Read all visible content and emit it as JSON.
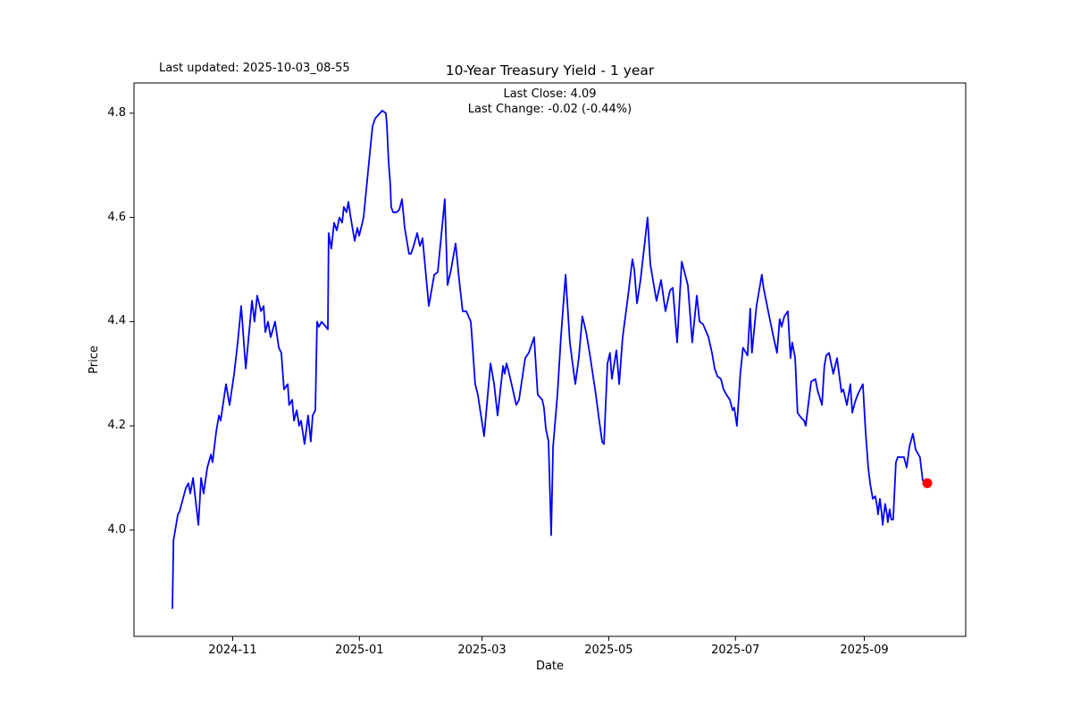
{
  "header": {
    "last_updated": "Last updated: 2025-10-03_08-55",
    "title": "10-Year Treasury Yield - 1 year",
    "subtitle_line1": "Last Close: 4.09",
    "subtitle_line2": "Last Change: -0.02 (-0.44%)"
  },
  "chart_data": {
    "type": "line",
    "title": "10-Year Treasury Yield - 1 year",
    "xlabel": "Date",
    "ylabel": "Price",
    "grid": false,
    "legend": "none",
    "line_color": "#0000ff",
    "marker_color": "#ff0000",
    "axis_color": "#000000",
    "x_unit": "days since 2024-10-03",
    "xlim": [
      -18.5,
      381.8
    ],
    "ylim": [
      3.796,
      4.858
    ],
    "x_ticks": [
      {
        "pos": 29,
        "label": "2024-11"
      },
      {
        "pos": 90,
        "label": "2025-01"
      },
      {
        "pos": 149,
        "label": "2025-03"
      },
      {
        "pos": 210,
        "label": "2025-05"
      },
      {
        "pos": 271,
        "label": "2025-07"
      },
      {
        "pos": 333,
        "label": "2025-09"
      }
    ],
    "y_ticks": [
      {
        "pos": 4.0,
        "label": "4.0"
      },
      {
        "pos": 4.2,
        "label": "4.2"
      },
      {
        "pos": 4.4,
        "label": "4.4"
      },
      {
        "pos": 4.6,
        "label": "4.6"
      },
      {
        "pos": 4.8,
        "label": "4.8"
      }
    ],
    "last_close": 4.09,
    "last_change": "-0.02 (-0.44%)",
    "series": [
      {
        "name": "10-Year Treasury Yield",
        "points": [
          [
            0,
            3.85
          ],
          [
            0.5,
            3.98
          ],
          [
            2.6,
            4.03
          ],
          [
            3.4,
            4.035
          ],
          [
            6.4,
            4.08
          ],
          [
            7.7,
            4.09
          ],
          [
            8.6,
            4.07
          ],
          [
            9.9,
            4.1
          ],
          [
            12.5,
            4.01
          ],
          [
            13.8,
            4.1
          ],
          [
            15,
            4.07
          ],
          [
            16.8,
            4.12
          ],
          [
            18.5,
            4.145
          ],
          [
            19.3,
            4.13
          ],
          [
            21.1,
            4.19
          ],
          [
            22.4,
            4.22
          ],
          [
            23.2,
            4.21
          ],
          [
            25.8,
            4.28
          ],
          [
            27.5,
            4.24
          ],
          [
            29.7,
            4.3
          ],
          [
            31.4,
            4.36
          ],
          [
            33.1,
            4.43
          ],
          [
            35.3,
            4.31
          ],
          [
            38.3,
            4.44
          ],
          [
            39.5,
            4.4
          ],
          [
            40.8,
            4.45
          ],
          [
            42.6,
            4.42
          ],
          [
            43.9,
            4.43
          ],
          [
            44.7,
            4.38
          ],
          [
            46,
            4.4
          ],
          [
            47.3,
            4.37
          ],
          [
            49.4,
            4.4
          ],
          [
            51.2,
            4.35
          ],
          [
            52.4,
            4.34
          ],
          [
            53.7,
            4.27
          ],
          [
            55.5,
            4.28
          ],
          [
            56.2,
            4.24
          ],
          [
            57.6,
            4.25
          ],
          [
            58.5,
            4.21
          ],
          [
            59.8,
            4.23
          ],
          [
            61,
            4.2
          ],
          [
            61.9,
            4.21
          ],
          [
            63.6,
            4.165
          ],
          [
            65.3,
            4.22
          ],
          [
            66.6,
            4.17
          ],
          [
            67.5,
            4.22
          ],
          [
            68.8,
            4.23
          ],
          [
            69.6,
            4.4
          ],
          [
            70.5,
            4.39
          ],
          [
            71.8,
            4.4
          ],
          [
            73.9,
            4.39
          ],
          [
            74.8,
            4.385
          ],
          [
            75.2,
            4.57
          ],
          [
            76.5,
            4.54
          ],
          [
            77.8,
            4.59
          ],
          [
            79.1,
            4.575
          ],
          [
            80.4,
            4.6
          ],
          [
            81.7,
            4.59
          ],
          [
            82.5,
            4.62
          ],
          [
            83.8,
            4.61
          ],
          [
            84.7,
            4.63
          ],
          [
            85.6,
            4.605
          ],
          [
            87.7,
            4.555
          ],
          [
            89,
            4.58
          ],
          [
            89.9,
            4.565
          ],
          [
            92,
            4.6
          ],
          [
            94.2,
            4.69
          ],
          [
            96.3,
            4.775
          ],
          [
            97.6,
            4.79
          ],
          [
            101,
            4.805
          ],
          [
            102.7,
            4.8
          ],
          [
            103.2,
            4.78
          ],
          [
            104,
            4.71
          ],
          [
            104.9,
            4.66
          ],
          [
            105.3,
            4.62
          ],
          [
            106.2,
            4.61
          ],
          [
            107.9,
            4.61
          ],
          [
            109.2,
            4.615
          ],
          [
            110.5,
            4.635
          ],
          [
            111.8,
            4.58
          ],
          [
            113.9,
            4.53
          ],
          [
            114.8,
            4.53
          ],
          [
            116.1,
            4.545
          ],
          [
            117.8,
            4.57
          ],
          [
            119.1,
            4.545
          ],
          [
            120.4,
            4.56
          ],
          [
            123.4,
            4.43
          ],
          [
            126,
            4.49
          ],
          [
            127.7,
            4.495
          ],
          [
            131.1,
            4.635
          ],
          [
            132.4,
            4.47
          ],
          [
            134.1,
            4.5
          ],
          [
            136.3,
            4.55
          ],
          [
            138,
            4.48
          ],
          [
            139.7,
            4.42
          ],
          [
            141.4,
            4.42
          ],
          [
            143.6,
            4.4
          ],
          [
            144,
            4.38
          ],
          [
            145.7,
            4.28
          ],
          [
            147,
            4.26
          ],
          [
            150,
            4.18
          ],
          [
            153.1,
            4.32
          ],
          [
            154.8,
            4.28
          ],
          [
            156.5,
            4.22
          ],
          [
            159.1,
            4.315
          ],
          [
            159.9,
            4.3
          ],
          [
            160.8,
            4.32
          ],
          [
            162.1,
            4.3
          ],
          [
            163.8,
            4.27
          ],
          [
            165.5,
            4.24
          ],
          [
            166.8,
            4.25
          ],
          [
            169.8,
            4.33
          ],
          [
            171.5,
            4.34
          ],
          [
            174.1,
            4.37
          ],
          [
            175.8,
            4.26
          ],
          [
            178,
            4.25
          ],
          [
            178.8,
            4.235
          ],
          [
            179.7,
            4.195
          ],
          [
            181,
            4.17
          ],
          [
            182.3,
            3.99
          ],
          [
            183.2,
            4.16
          ],
          [
            185.3,
            4.26
          ],
          [
            187,
            4.37
          ],
          [
            189.2,
            4.49
          ],
          [
            191.3,
            4.36
          ],
          [
            193.9,
            4.28
          ],
          [
            195.6,
            4.33
          ],
          [
            197.3,
            4.41
          ],
          [
            199.1,
            4.38
          ],
          [
            200.8,
            4.34
          ],
          [
            203.8,
            4.26
          ],
          [
            205.1,
            4.22
          ],
          [
            206.8,
            4.17
          ],
          [
            207.7,
            4.165
          ],
          [
            209.4,
            4.32
          ],
          [
            210.6,
            4.34
          ],
          [
            211.5,
            4.29
          ],
          [
            213.7,
            4.345
          ],
          [
            215,
            4.28
          ],
          [
            216.7,
            4.37
          ],
          [
            219.3,
            4.45
          ],
          [
            221.4,
            4.52
          ],
          [
            222.3,
            4.5
          ],
          [
            223.6,
            4.435
          ],
          [
            225.3,
            4.48
          ],
          [
            228.7,
            4.6
          ],
          [
            230,
            4.51
          ],
          [
            231.7,
            4.47
          ],
          [
            233,
            4.44
          ],
          [
            235.2,
            4.48
          ],
          [
            237.3,
            4.42
          ],
          [
            239.5,
            4.46
          ],
          [
            240.8,
            4.465
          ],
          [
            242.9,
            4.36
          ],
          [
            245.1,
            4.515
          ],
          [
            246.8,
            4.49
          ],
          [
            248.1,
            4.47
          ],
          [
            250.2,
            4.36
          ],
          [
            252.4,
            4.45
          ],
          [
            253.7,
            4.4
          ],
          [
            255.4,
            4.395
          ],
          [
            258,
            4.37
          ],
          [
            259.7,
            4.34
          ],
          [
            261,
            4.31
          ],
          [
            262.3,
            4.295
          ],
          [
            264,
            4.29
          ],
          [
            265.3,
            4.27
          ],
          [
            266.6,
            4.26
          ],
          [
            268.3,
            4.25
          ],
          [
            269.6,
            4.23
          ],
          [
            270.4,
            4.235
          ],
          [
            271.7,
            4.2
          ],
          [
            273.3,
            4.3
          ],
          [
            274.6,
            4.35
          ],
          [
            276.8,
            4.335
          ],
          [
            278.1,
            4.425
          ],
          [
            278.9,
            4.34
          ],
          [
            281.1,
            4.43
          ],
          [
            283.7,
            4.49
          ],
          [
            284.5,
            4.465
          ],
          [
            287.5,
            4.405
          ],
          [
            289.3,
            4.37
          ],
          [
            291,
            4.34
          ],
          [
            292.3,
            4.405
          ],
          [
            293.2,
            4.39
          ],
          [
            294.5,
            4.41
          ],
          [
            296.2,
            4.42
          ],
          [
            297.5,
            4.33
          ],
          [
            298.3,
            4.36
          ],
          [
            299.7,
            4.33
          ],
          [
            300.9,
            4.225
          ],
          [
            302.7,
            4.215
          ],
          [
            304,
            4.21
          ],
          [
            304.8,
            4.2
          ],
          [
            307.4,
            4.285
          ],
          [
            309.5,
            4.29
          ],
          [
            310.4,
            4.27
          ],
          [
            312.6,
            4.24
          ],
          [
            313.8,
            4.315
          ],
          [
            314.7,
            4.335
          ],
          [
            316,
            4.34
          ],
          [
            318.1,
            4.3
          ],
          [
            319.9,
            4.33
          ],
          [
            322,
            4.265
          ],
          [
            322.9,
            4.27
          ],
          [
            324.6,
            4.24
          ],
          [
            326.3,
            4.28
          ],
          [
            327.2,
            4.225
          ],
          [
            328.5,
            4.245
          ],
          [
            329.8,
            4.26
          ],
          [
            332.3,
            4.28
          ],
          [
            333.6,
            4.19
          ],
          [
            334.9,
            4.12
          ],
          [
            335.8,
            4.09
          ],
          [
            337.1,
            4.06
          ],
          [
            338.3,
            4.065
          ],
          [
            339.2,
            4.045
          ],
          [
            339.6,
            4.03
          ],
          [
            340.5,
            4.06
          ],
          [
            341.3,
            4.035
          ],
          [
            341.8,
            4.01
          ],
          [
            343,
            4.05
          ],
          [
            343.9,
            4.03
          ],
          [
            344.3,
            4.015
          ],
          [
            345.2,
            4.04
          ],
          [
            346,
            4.02
          ],
          [
            346.9,
            4.02
          ],
          [
            348.2,
            4.13
          ],
          [
            349.1,
            4.14
          ],
          [
            352.1,
            4.14
          ],
          [
            353.4,
            4.12
          ],
          [
            354.7,
            4.16
          ],
          [
            356.4,
            4.185
          ],
          [
            357.7,
            4.155
          ],
          [
            359,
            4.145
          ],
          [
            359.8,
            4.14
          ],
          [
            361.1,
            4.095
          ],
          [
            363.3,
            4.09
          ]
        ]
      }
    ]
  }
}
